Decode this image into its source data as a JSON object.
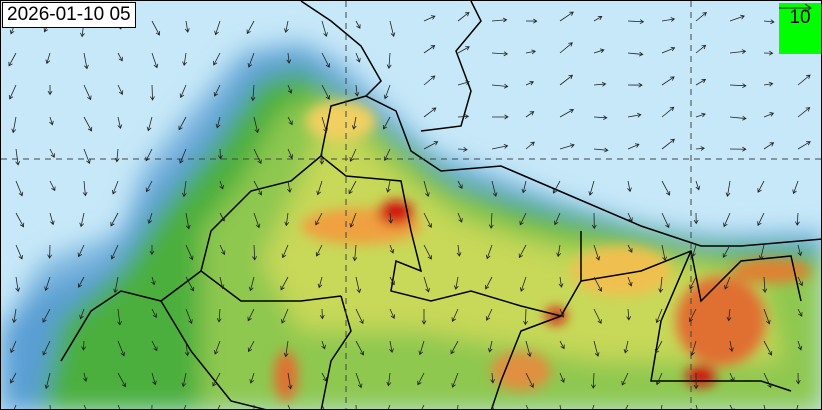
{
  "timestamp": "2026-01-10 05",
  "wind_legend": {
    "value": "10",
    "icon": "arrow-right-icon",
    "color": "#00ff00"
  },
  "colors": {
    "background": "#c6e8f8",
    "low": "#5a9fd4",
    "mid": "#4caf3c",
    "moderate": "#f0d060",
    "high": "#e06030",
    "very_high": "#d01010"
  }
}
